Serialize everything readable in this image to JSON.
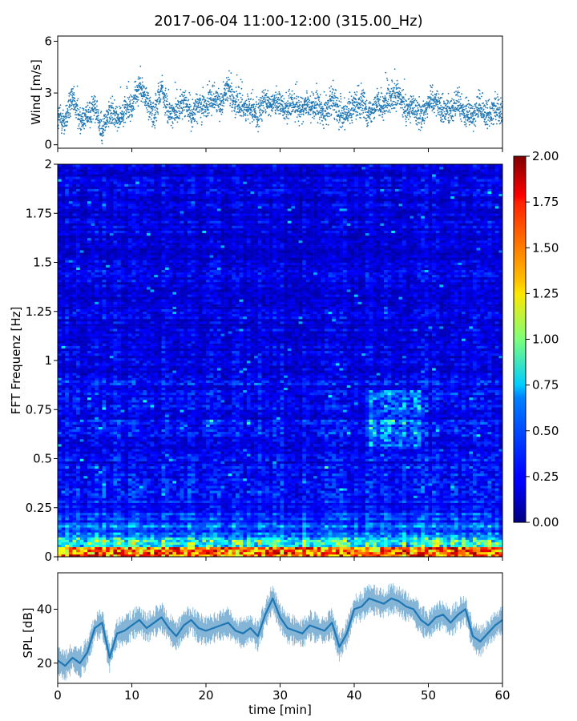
{
  "figure": {
    "title": "2017-06-04 11:00-12:00 (315.00_Hz)"
  },
  "chart_data": [
    {
      "type": "scatter",
      "ylabel": "Wind [m/s]",
      "xlim": [
        0,
        60
      ],
      "ylim": [
        -0.2,
        6.3
      ],
      "yticks": [
        0,
        3,
        6
      ],
      "ytick_labels": [
        "0",
        "3",
        "6"
      ],
      "color": "#1f77b4",
      "segments": [
        {
          "t": 0,
          "mean": 1.6
        },
        {
          "t": 1,
          "mean": 1.3
        },
        {
          "t": 2,
          "mean": 2.7
        },
        {
          "t": 3,
          "mean": 1.4
        },
        {
          "t": 4,
          "mean": 1.7
        },
        {
          "t": 5,
          "mean": 2.2
        },
        {
          "t": 6,
          "mean": 0.8
        },
        {
          "t": 7,
          "mean": 1.9
        },
        {
          "t": 8,
          "mean": 1.5
        },
        {
          "t": 9,
          "mean": 2.0
        },
        {
          "t": 10,
          "mean": 2.2
        },
        {
          "t": 11,
          "mean": 3.4
        },
        {
          "t": 12,
          "mean": 2.6
        },
        {
          "t": 13,
          "mean": 1.6
        },
        {
          "t": 14,
          "mean": 3.3
        },
        {
          "t": 15,
          "mean": 1.7
        },
        {
          "t": 16,
          "mean": 2.0
        },
        {
          "t": 17,
          "mean": 2.5
        },
        {
          "t": 18,
          "mean": 1.7
        },
        {
          "t": 19,
          "mean": 2.3
        },
        {
          "t": 20,
          "mean": 2.2
        },
        {
          "t": 21,
          "mean": 2.7
        },
        {
          "t": 22,
          "mean": 2.4
        },
        {
          "t": 23,
          "mean": 3.4
        },
        {
          "t": 24,
          "mean": 2.3
        },
        {
          "t": 25,
          "mean": 2.2
        },
        {
          "t": 26,
          "mean": 2.1
        },
        {
          "t": 27,
          "mean": 1.6
        },
        {
          "t": 28,
          "mean": 2.6
        },
        {
          "t": 29,
          "mean": 2.3
        },
        {
          "t": 30,
          "mean": 2.4
        },
        {
          "t": 31,
          "mean": 2.0
        },
        {
          "t": 32,
          "mean": 2.4
        },
        {
          "t": 33,
          "mean": 1.9
        },
        {
          "t": 34,
          "mean": 2.3
        },
        {
          "t": 35,
          "mean": 2.2
        },
        {
          "t": 36,
          "mean": 1.8
        },
        {
          "t": 37,
          "mean": 2.6
        },
        {
          "t": 38,
          "mean": 1.9
        },
        {
          "t": 39,
          "mean": 1.8
        },
        {
          "t": 40,
          "mean": 2.1
        },
        {
          "t": 41,
          "mean": 2.5
        },
        {
          "t": 42,
          "mean": 1.8
        },
        {
          "t": 43,
          "mean": 2.4
        },
        {
          "t": 44,
          "mean": 2.2
        },
        {
          "t": 45,
          "mean": 2.6
        },
        {
          "t": 46,
          "mean": 2.8
        },
        {
          "t": 47,
          "mean": 2.0
        },
        {
          "t": 48,
          "mean": 2.2
        },
        {
          "t": 49,
          "mean": 1.6
        },
        {
          "t": 50,
          "mean": 2.5
        },
        {
          "t": 51,
          "mean": 2.6
        },
        {
          "t": 52,
          "mean": 1.9
        },
        {
          "t": 53,
          "mean": 2.0
        },
        {
          "t": 54,
          "mean": 2.4
        },
        {
          "t": 55,
          "mean": 1.7
        },
        {
          "t": 56,
          "mean": 1.8
        },
        {
          "t": 57,
          "mean": 2.1
        },
        {
          "t": 58,
          "mean": 1.6
        },
        {
          "t": 59,
          "mean": 2.2
        },
        {
          "t": 60,
          "mean": 1.8
        }
      ]
    },
    {
      "type": "heatmap",
      "ylabel": "FFT Frequenz [Hz]",
      "xlim": [
        0,
        60
      ],
      "ylim": [
        0,
        2
      ],
      "yticks": [
        0,
        0.25,
        0.5,
        0.75,
        1,
        1.25,
        1.5,
        1.75,
        2
      ],
      "ytick_labels": [
        "0",
        "0.25",
        "0.5",
        "0.75",
        "1",
        "1.25",
        "1.5",
        "1.75",
        "2"
      ],
      "colormap": "jet",
      "colorbar": {
        "range": [
          0,
          2
        ],
        "ticks": [
          0,
          0.25,
          0.5,
          0.75,
          1,
          1.25,
          1.5,
          1.75,
          2
        ],
        "tick_labels": [
          "0.00",
          "0.25",
          "0.50",
          "0.75",
          "1.00",
          "1.25",
          "1.50",
          "1.75",
          "2.00"
        ]
      },
      "features": {
        "low_freq_band_hz": [
          0,
          0.05
        ],
        "low_freq_level": 1.8,
        "band_0_05_to_0_3_level": 0.75,
        "background_level": 0.2,
        "highlight_minutes": [
          42,
          49
        ],
        "highlight_freq_hz": [
          0.6,
          0.8
        ]
      }
    },
    {
      "type": "line",
      "ylabel": "SPL [dB]",
      "xlabel": "time [min]",
      "xlim": [
        0,
        60
      ],
      "ylim": [
        12.5,
        53.5
      ],
      "xticks": [
        0,
        10,
        20,
        30,
        40,
        50,
        60
      ],
      "xtick_labels": [
        "0",
        "10",
        "20",
        "30",
        "40",
        "50",
        "60"
      ],
      "yticks": [
        20,
        40
      ],
      "ytick_labels": [
        "20",
        "40"
      ],
      "color": "#1f77b4",
      "x": [
        0,
        1,
        2,
        3,
        4,
        5,
        6,
        7,
        8,
        9,
        10,
        11,
        12,
        13,
        14,
        15,
        16,
        17,
        18,
        19,
        20,
        21,
        22,
        23,
        24,
        25,
        26,
        27,
        28,
        29,
        30,
        31,
        32,
        33,
        34,
        35,
        36,
        37,
        38,
        39,
        40,
        41,
        42,
        43,
        44,
        45,
        46,
        47,
        48,
        49,
        50,
        51,
        52,
        53,
        54,
        55,
        56,
        57,
        58,
        59,
        60
      ],
      "y": [
        21,
        19,
        22,
        20,
        24,
        33,
        35,
        22,
        31,
        32,
        34,
        36,
        33,
        35,
        37,
        33,
        30,
        34,
        36,
        33,
        32,
        33,
        34,
        35,
        32,
        31,
        33,
        30,
        38,
        44,
        37,
        33,
        32,
        31,
        34,
        33,
        32,
        35,
        26,
        31,
        40,
        41,
        44,
        43,
        42,
        44,
        43,
        41,
        40,
        36,
        34,
        37,
        38,
        35,
        38,
        40,
        30,
        28,
        31,
        34,
        36
      ]
    }
  ]
}
